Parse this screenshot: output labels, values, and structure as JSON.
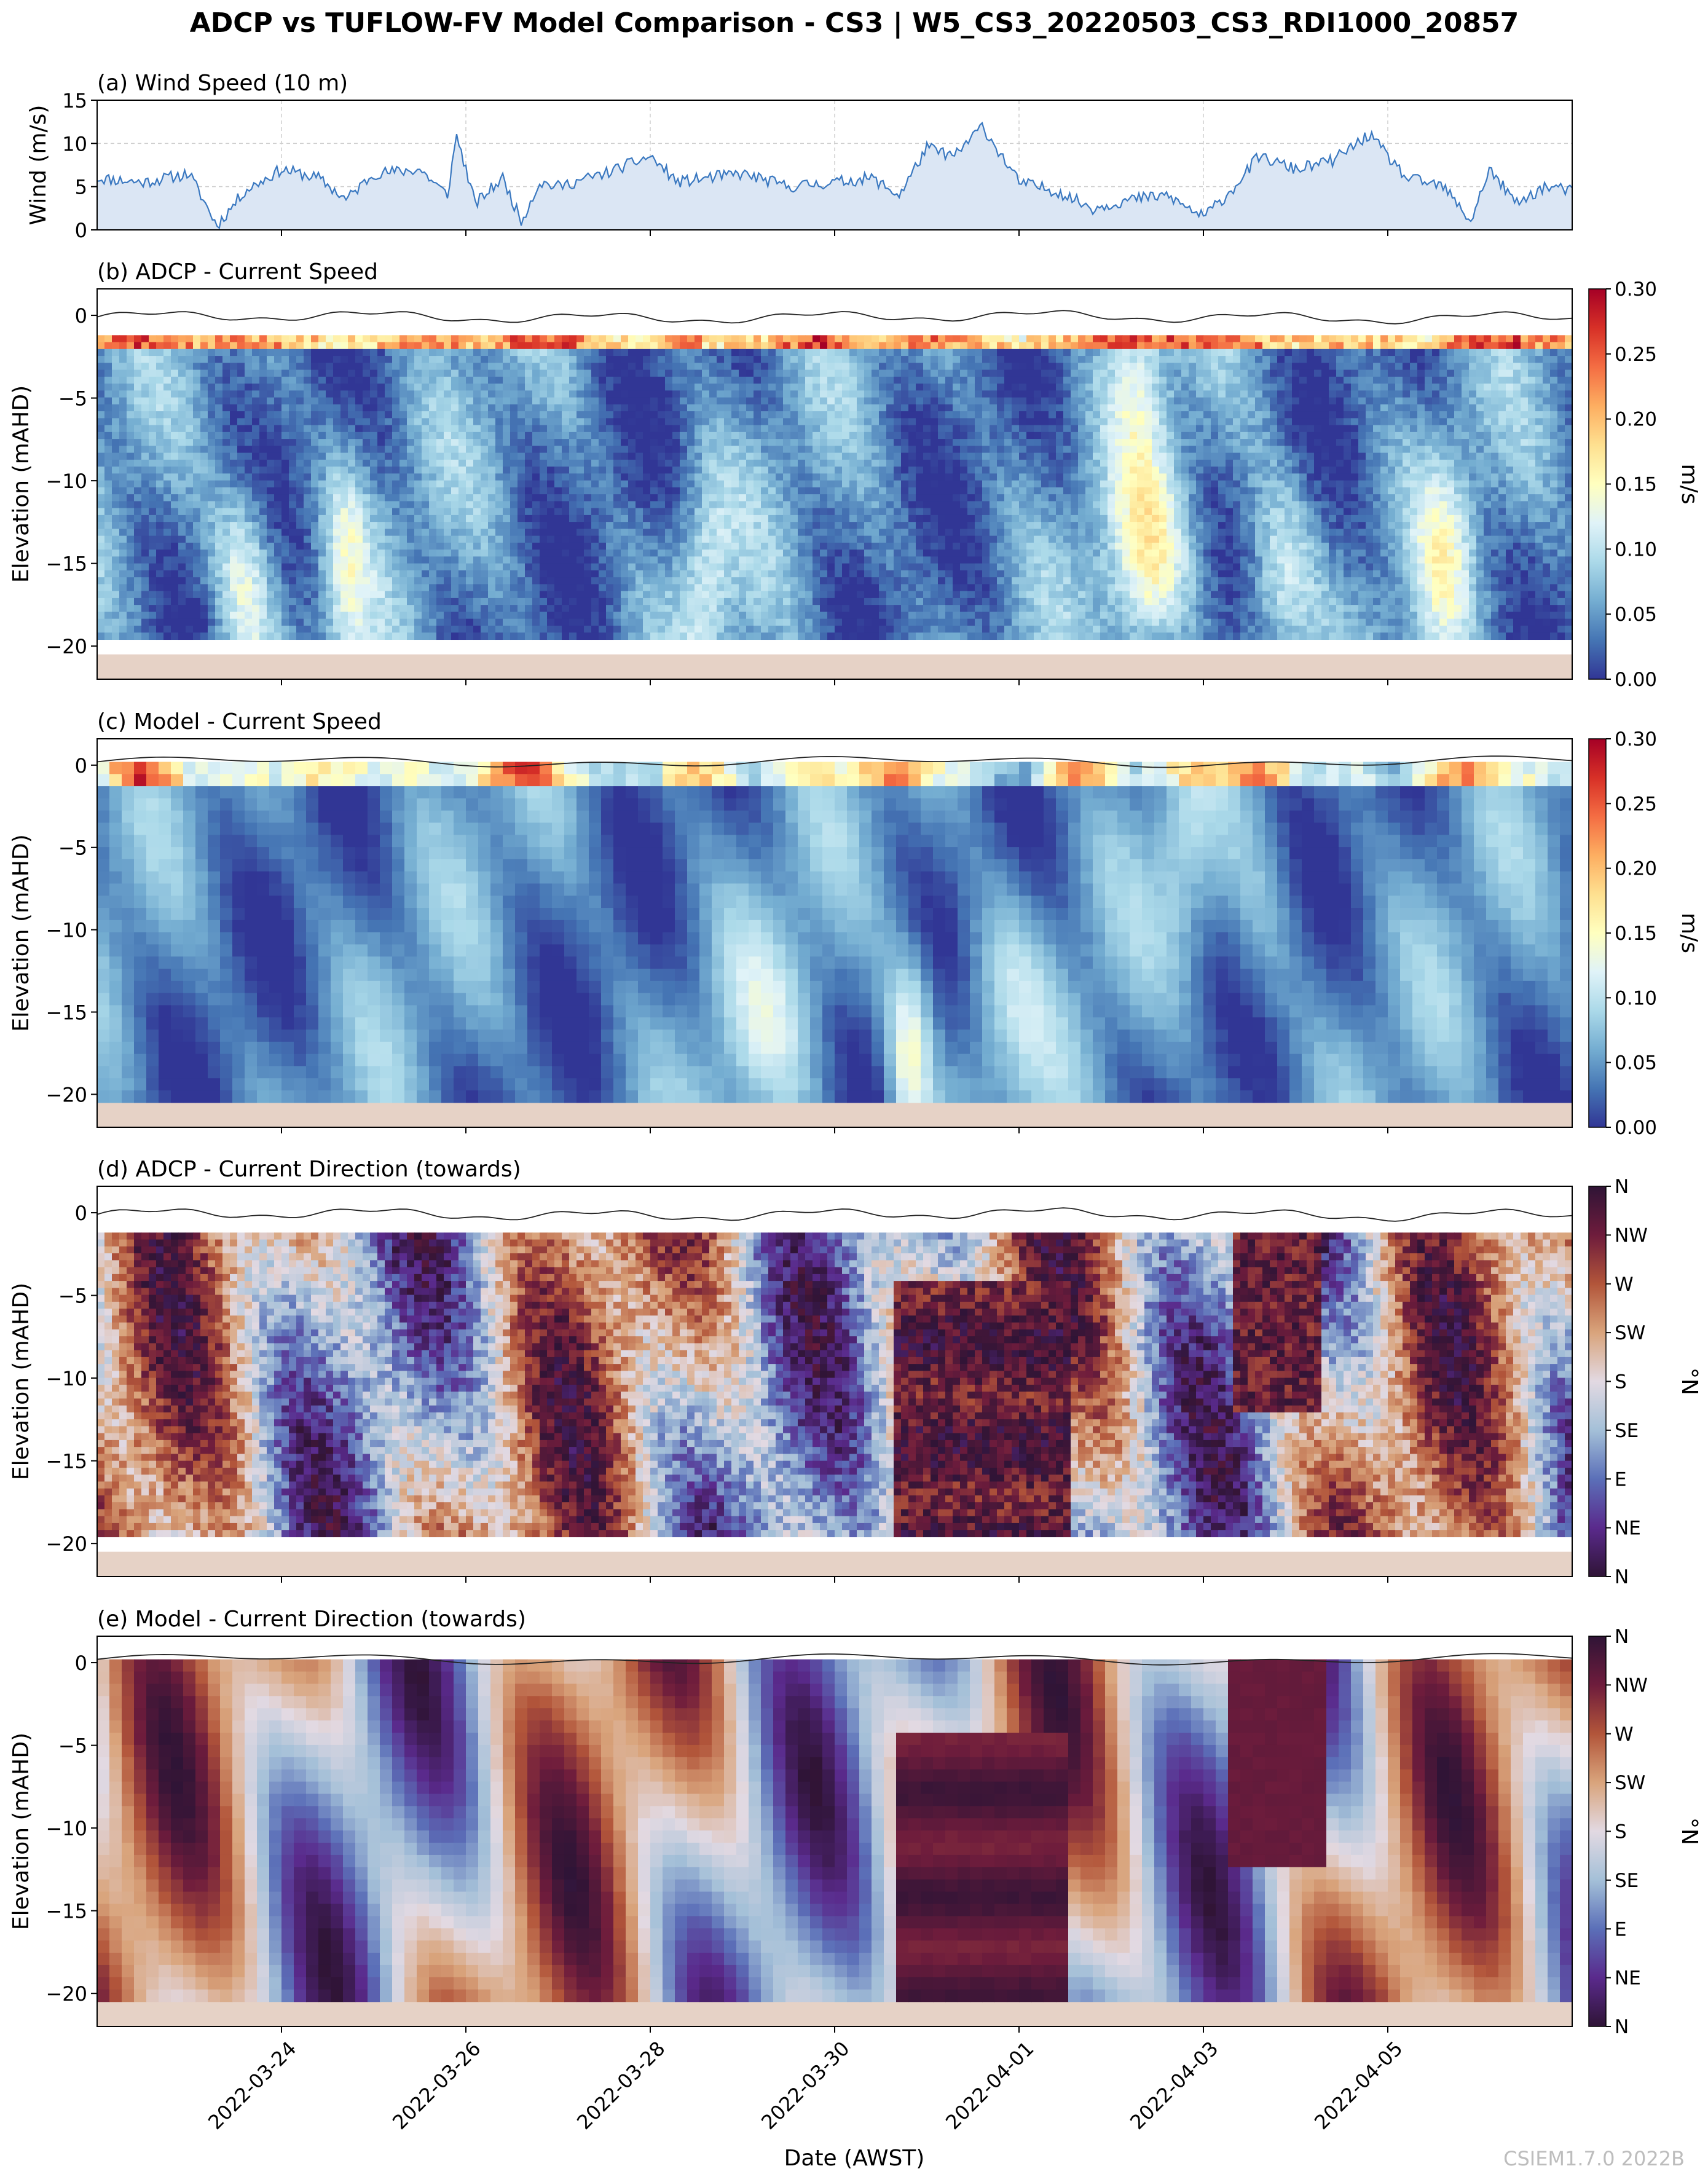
{
  "title": "ADCP vs TUFLOW-FV Model Comparison - CS3 | W5_CS3_20220503_CS3_RDI1000_20857",
  "watermark": "CSIEM1.7.0 2022B",
  "xlabel": "Date (AWST)",
  "x_range_days": [
    0,
    16
  ],
  "date_ticks": [
    {
      "day": 2,
      "label": "2022-03-24"
    },
    {
      "day": 4,
      "label": "2022-03-26"
    },
    {
      "day": 6,
      "label": "2022-03-28"
    },
    {
      "day": 8,
      "label": "2022-03-30"
    },
    {
      "day": 10,
      "label": "2022-04-01"
    },
    {
      "day": 12,
      "label": "2022-04-03"
    },
    {
      "day": 14,
      "label": "2022-04-05"
    }
  ],
  "colors": {
    "wind_line": "#3a78c0",
    "wind_fill": "#dbe6f4",
    "seabed": "#e6d2c6",
    "grid": "#cfcfcf",
    "surface_line": "#222222"
  },
  "panels": {
    "wind": {
      "title": "(a) Wind Speed (10 m)",
      "ylabel": "Wind (m/s)",
      "ylim": [
        0,
        15
      ],
      "yticks": [
        "0",
        "5",
        "10",
        "15"
      ]
    },
    "adcp_speed": {
      "title": "(b) ADCP - Current Speed",
      "ylabel": "Elevation (mAHD)",
      "ylim": [
        -22,
        1.6
      ],
      "yticks": [
        "0",
        "−5",
        "−10",
        "−15",
        "−20"
      ],
      "colorbar_label": "m/s",
      "cbar_ticks": [
        "0.00",
        "0.05",
        "0.10",
        "0.15",
        "0.20",
        "0.25",
        "0.30"
      ]
    },
    "model_speed": {
      "title": "(c) Model - Current Speed",
      "ylabel": "Elevation (mAHD)",
      "ylim": [
        -22,
        1.6
      ],
      "yticks": [
        "0",
        "−5",
        "−10",
        "−15",
        "−20"
      ],
      "colorbar_label": "m/s",
      "cbar_ticks": [
        "0.00",
        "0.05",
        "0.10",
        "0.15",
        "0.20",
        "0.25",
        "0.30"
      ]
    },
    "adcp_dir": {
      "title": "(d) ADCP - Current Direction (towards)",
      "ylabel": "Elevation (mAHD)",
      "ylim": [
        -22,
        1.6
      ],
      "yticks": [
        "0",
        "−5",
        "−10",
        "−15",
        "−20"
      ],
      "colorbar_label": "°N",
      "cbar_ticks": [
        "N",
        "NE",
        "E",
        "SE",
        "S",
        "SW",
        "W",
        "NW",
        "N"
      ]
    },
    "model_dir": {
      "title": "(e) Model - Current Direction (towards)",
      "ylabel": "Elevation (mAHD)",
      "ylim": [
        -22,
        1.6
      ],
      "yticks": [
        "0",
        "−5",
        "−10",
        "−15",
        "−20"
      ],
      "colorbar_label": "°N",
      "cbar_ticks": [
        "N",
        "NE",
        "E",
        "SE",
        "S",
        "SW",
        "W",
        "NW",
        "N"
      ]
    }
  },
  "chart_data": [
    {
      "type": "area",
      "title": "(a) Wind Speed (10 m)",
      "ylabel": "Wind (m/s)",
      "ylim": [
        0,
        15
      ],
      "x_days": [
        0,
        0.5,
        1,
        1.3,
        1.6,
        2,
        2.4,
        2.7,
        3,
        3.5,
        3.8,
        3.9,
        4.1,
        4.4,
        4.6,
        4.8,
        5,
        5.5,
        6,
        6.3,
        6.6,
        7,
        7.5,
        8,
        8.4,
        8.7,
        9,
        9.3,
        9.6,
        10,
        10.4,
        10.8,
        11.2,
        11.6,
        12,
        12.3,
        12.6,
        13,
        13.4,
        13.8,
        14.2,
        14.6,
        14.9,
        15.1,
        15.4,
        15.7,
        16
      ],
      "wind_ms": [
        6,
        5.5,
        6.5,
        0.5,
        4.5,
        7,
        6,
        3.5,
        6.5,
        7,
        4,
        11,
        3,
        6,
        1,
        5.5,
        5,
        6.5,
        8.5,
        5.5,
        6,
        6.5,
        5,
        5.5,
        6,
        4,
        9.5,
        8.5,
        12,
        5.5,
        4.5,
        2.5,
        3.5,
        4,
        1.5,
        4.5,
        8.5,
        7,
        8,
        11,
        6,
        5,
        1,
        7,
        3,
        5,
        4.5
      ],
      "legend": "none"
    },
    {
      "type": "heatmap",
      "title": "(b) ADCP - Current Speed",
      "ylabel": "Elevation (mAHD)",
      "ylim": [
        -22,
        1.6
      ],
      "colorbar": {
        "label": "m/s",
        "range": [
          0,
          0.3
        ],
        "colormap": "RdYlBu_r"
      },
      "bins_elevation": [
        -1.5,
        -19.5
      ],
      "seabed_elevation": -20.5,
      "surface_elevation_range": [
        -0.4,
        0.3
      ]
    },
    {
      "type": "heatmap",
      "title": "(c) Model - Current Speed",
      "ylabel": "Elevation (mAHD)",
      "ylim": [
        -22,
        1.6
      ],
      "colorbar": {
        "label": "m/s",
        "range": [
          0,
          0.3
        ],
        "colormap": "RdYlBu_r"
      },
      "seabed_elevation": -20.5,
      "surface_elevation_range": [
        -0.2,
        0.6
      ]
    },
    {
      "type": "heatmap",
      "title": "(d) ADCP - Current Direction (towards)",
      "ylabel": "Elevation (mAHD)",
      "ylim": [
        -22,
        1.6
      ],
      "colorbar": {
        "label": "°N",
        "range": [
          0,
          360
        ],
        "colormap": "twilight_shifted",
        "ticks": [
          "N",
          "NE",
          "E",
          "SE",
          "S",
          "SW",
          "W",
          "NW",
          "N"
        ]
      },
      "seabed_elevation": -20.5
    },
    {
      "type": "heatmap",
      "title": "(e) Model - Current Direction (towards)",
      "ylabel": "Elevation (mAHD)",
      "ylim": [
        -22,
        1.6
      ],
      "colorbar": {
        "label": "°N",
        "range": [
          0,
          360
        ],
        "colormap": "twilight_shifted",
        "ticks": [
          "N",
          "NE",
          "E",
          "SE",
          "S",
          "SW",
          "W",
          "NW",
          "N"
        ]
      },
      "seabed_elevation": -20.5
    }
  ]
}
